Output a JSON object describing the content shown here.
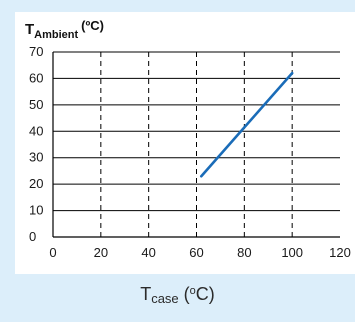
{
  "chart_data": {
    "type": "line",
    "ylabel": {
      "main": "T",
      "sub": "Ambient",
      "unit": "(ºC)"
    },
    "xlabel": {
      "main": "T",
      "sub": "case",
      "unit_open": "(",
      "unit_sup": "o",
      "unit_close": "C)"
    },
    "xlim": [
      0,
      120
    ],
    "ylim": [
      0,
      70
    ],
    "xticks": [
      0,
      20,
      40,
      60,
      80,
      100,
      120
    ],
    "yticks": [
      0,
      10,
      20,
      30,
      40,
      50,
      60,
      70
    ],
    "xtick_labels": [
      "0",
      "20",
      "40",
      "60",
      "80",
      "100",
      "120"
    ],
    "ytick_labels": [
      "0",
      "10",
      "20",
      "30",
      "40",
      "50",
      "60",
      "70"
    ],
    "grid": {
      "horizontal": "solid",
      "vertical": "dashed"
    },
    "series": [
      {
        "x": [
          62,
          100
        ],
        "y": [
          23,
          62
        ],
        "color": "#1a6cb8"
      }
    ]
  }
}
